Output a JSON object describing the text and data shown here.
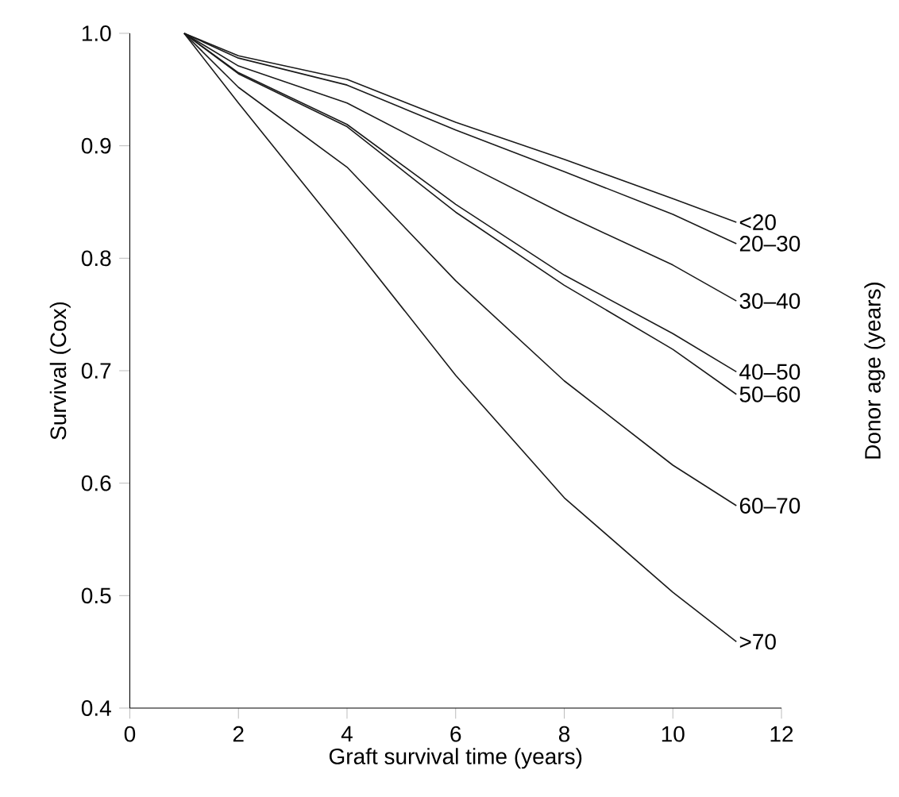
{
  "chart_data": {
    "type": "line",
    "xlabel": "Graft survival time (years)",
    "ylabel": "Survival (Cox)",
    "legend_title": "Donor age (years)",
    "xlim": [
      0,
      12
    ],
    "xticks": [
      0,
      2,
      4,
      6,
      8,
      10,
      12
    ],
    "ylim": [
      0.4,
      1.0
    ],
    "yticks": [
      0.4,
      0.5,
      0.6,
      0.7,
      0.8,
      0.9,
      {
        "value": 1.0,
        "label": "1.0"
      }
    ],
    "x": [
      1,
      2,
      4,
      6,
      8,
      10,
      11.17
    ],
    "series": [
      {
        "name": "<20",
        "color": "#1a1a1a",
        "values": [
          1.0,
          0.98,
          0.959,
          0.921,
          0.888,
          0.853,
          0.832
        ]
      },
      {
        "name": "20–30",
        "color": "#1a1a1a",
        "values": [
          1.0,
          0.978,
          0.954,
          0.914,
          0.877,
          0.839,
          0.813
        ]
      },
      {
        "name": "30–40",
        "color": "#1a1a1a",
        "values": [
          1.0,
          0.971,
          0.938,
          0.888,
          0.839,
          0.794,
          0.762
        ]
      },
      {
        "name": "40–50",
        "color": "#1a1a1a",
        "values": [
          1.0,
          0.965,
          0.919,
          0.848,
          0.785,
          0.733,
          0.699
        ]
      },
      {
        "name": "50–60",
        "color": "#1a1a1a",
        "values": [
          1.0,
          0.964,
          0.917,
          0.841,
          0.776,
          0.719,
          0.679
        ]
      },
      {
        "name": "60–70",
        "color": "#1a1a1a",
        "values": [
          1.0,
          0.952,
          0.881,
          0.78,
          0.691,
          0.616,
          0.58
        ]
      },
      {
        "name": ">70",
        "color": "#1a1a1a",
        "values": [
          1.0,
          0.938,
          0.818,
          0.696,
          0.587,
          0.503,
          0.459
        ]
      }
    ]
  }
}
